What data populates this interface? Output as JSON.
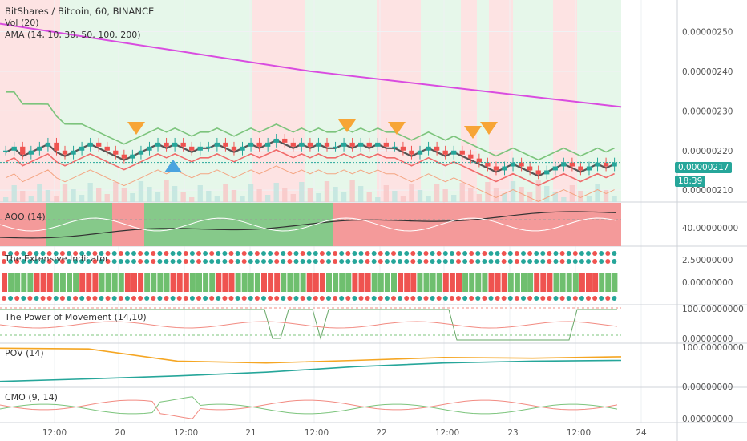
{
  "symbol_title": "BitShares / Bitcoin, 60, BINANCE",
  "indicator_labels": {
    "vol": "Vol (20)",
    "ama": "AMA (14, 10, 30, 50, 100, 200)",
    "aoo": "AOO (14)",
    "extensive": "The Extensive Indicator",
    "pom": "The Power of Movement (14,10)",
    "pov": "POV (14)",
    "cmo": "CMO (9, 14)"
  },
  "last_price": "0.00000217",
  "countdown": "18:39",
  "colors": {
    "up": "#26a69a",
    "down": "#ef5350",
    "ama_slow": "#d94ce0",
    "band_upper": "#7cc47c",
    "band_lower": "#f06b6b",
    "ama_fast": "#555555",
    "bg_green": "#e6f7ea",
    "bg_red": "#fde3e3",
    "aoo_green": "#86c98a",
    "aoo_red": "#f49a9a",
    "pov_orange": "#f5a623",
    "pov_teal": "#26a69a"
  },
  "chart_data": [
    {
      "type": "candlestick",
      "pane": "price",
      "title": "BitShares / Bitcoin, 60, BINANCE",
      "x_tick_labels": [
        "12:00",
        "20",
        "12:00",
        "21",
        "12:00",
        "22",
        "12:00",
        "23",
        "12:00",
        "24"
      ],
      "y_tick_labels": [
        "0.00000250",
        "0.00000240",
        "0.00000230",
        "0.00000220",
        "0.00000210"
      ],
      "ylim": [
        2.07e-06,
        2.58e-06
      ],
      "close_series": [
        2.2,
        2.21,
        2.19,
        2.2,
        2.21,
        2.22,
        2.2,
        2.19,
        2.2,
        2.21,
        2.22,
        2.21,
        2.2,
        2.19,
        2.18,
        2.19,
        2.2,
        2.21,
        2.22,
        2.21,
        2.22,
        2.21,
        2.2,
        2.21,
        2.21,
        2.22,
        2.21,
        2.2,
        2.21,
        2.22,
        2.21,
        2.22,
        2.23,
        2.22,
        2.21,
        2.22,
        2.21,
        2.22,
        2.21,
        2.21,
        2.22,
        2.21,
        2.22,
        2.21,
        2.22,
        2.21,
        2.21,
        2.2,
        2.19,
        2.2,
        2.21,
        2.2,
        2.19,
        2.2,
        2.19,
        2.18,
        2.17,
        2.16,
        2.15,
        2.16,
        2.17,
        2.16,
        2.15,
        2.14,
        2.15,
        2.16,
        2.17,
        2.16,
        2.15,
        2.16,
        2.17,
        2.16,
        2.17
      ],
      "ama_slow_line": [
        2.52,
        2.4,
        2.31
      ],
      "last_price": 2.17e-06,
      "markers": [
        {
          "kind": "sell",
          "label": "down-triangle"
        },
        {
          "kind": "buy",
          "label": "up-triangle"
        },
        {
          "kind": "sell",
          "label": "down-triangle"
        },
        {
          "kind": "sell",
          "label": "down-triangle"
        },
        {
          "kind": "sell",
          "label": "down-triangle"
        },
        {
          "kind": "sell",
          "label": "down-triangle"
        }
      ]
    },
    {
      "type": "area",
      "pane": "AOO (14)",
      "y_tick_labels": [
        "40.00000000"
      ],
      "regime": [
        "red",
        "green",
        "red",
        "green",
        "red"
      ]
    },
    {
      "type": "heatmap",
      "pane": "The Extensive Indicator",
      "y_tick_labels": [
        "2.50000000",
        "0.00000000"
      ]
    },
    {
      "type": "line",
      "pane": "The Power of Movement (14,10)",
      "y_tick_labels": [
        "100.00000000",
        "0.00000000"
      ]
    },
    {
      "type": "line",
      "pane": "POV (14)",
      "y_tick_labels": [
        "100.00000000",
        "0.00000000"
      ],
      "series": [
        {
          "values": [
            95,
            93,
            60,
            55,
            62,
            70,
            68,
            72
          ]
        },
        {
          "values": [
            5,
            12,
            20,
            30,
            45,
            55,
            60,
            62
          ]
        }
      ]
    },
    {
      "type": "line",
      "pane": "CMO (9, 14)",
      "y_tick_labels": [
        "0.00000000"
      ]
    }
  ]
}
